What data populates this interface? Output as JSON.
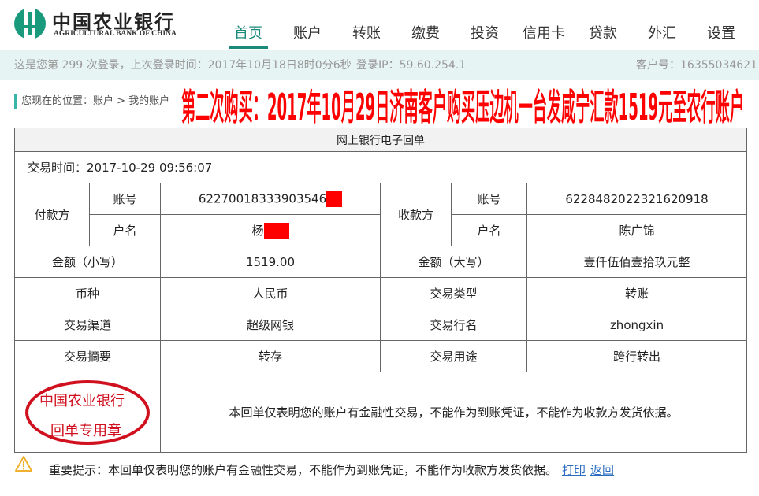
{
  "brand": {
    "cn": "中国农业银行",
    "en": "AGRICULTURAL BANK OF CHINA"
  },
  "nav": [
    "首页",
    "账户",
    "转账",
    "缴费",
    "投资",
    "信用卡",
    "贷款",
    "外汇",
    "设置"
  ],
  "colors": {
    "accent": "#1a8a7a",
    "overlay": "#ff0000",
    "stamp": "#d0101e",
    "link": "#2a6cc0"
  },
  "info": {
    "login": "这是您第 299 次登录，上次登录时间：2017年10月18日8时0分6秒",
    "ip": "登录IP：59.60.254.1",
    "customer": "客户号：16355034621"
  },
  "breadcrumb": "您现在的位置：账户 > 我的账户",
  "overlay_text": "第二次购买：2017年10月29日济南客户购买压边机一台发咸宁汇款1519元至农行账户",
  "receipt": {
    "title": "网上银行电子回单",
    "time": "交易时间：2017-10-29 09:56:07",
    "payer_label": "付款方",
    "payee_label": "收款方",
    "acct_label": "账号",
    "name_label": "户名",
    "payer_acct": "62270018333903546",
    "payer_name": "杨",
    "payee_acct": "6228482022321620918",
    "payee_name": "陈广锦",
    "rows": [
      [
        "金额（小写）",
        "1519.00",
        "金额（大写）",
        "壹仟伍佰壹拾玖元整"
      ],
      [
        "币种",
        "人民币",
        "交易类型",
        "转账"
      ],
      [
        "交易渠道",
        "超级网银",
        "交易行名",
        "zhongxin"
      ],
      [
        "交易摘要",
        "转存",
        "交易用途",
        "跨行转出"
      ]
    ],
    "stamp": {
      "line1": "中国农业银行",
      "line2": "回单专用章"
    },
    "notice": "本回单仅表明您的账户有金融性交易，不能作为到账凭证，不能作为收款方发货依据。"
  },
  "tip": {
    "text": "重要提示：本回单仅表明您的账户有金融性交易，不能作为到账凭证，不能作为收款方发货依据。",
    "print": "打印",
    "back": "返回"
  }
}
